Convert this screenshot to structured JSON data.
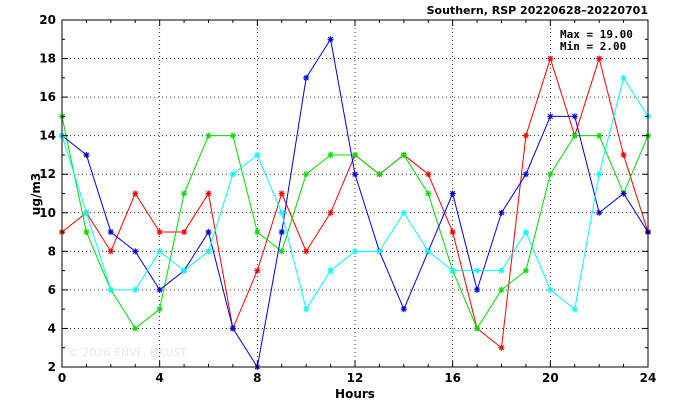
{
  "chart_data": {
    "type": "line",
    "title": "Southern, RSP 20220628–20220701",
    "xlabel": "Hours",
    "ylabel": "ug/m3",
    "xlim": [
      0,
      24
    ],
    "ylim": [
      2,
      20
    ],
    "xticks": [
      0,
      4,
      8,
      12,
      16,
      20,
      24
    ],
    "yticks": [
      2,
      4,
      6,
      8,
      10,
      12,
      14,
      16,
      18,
      20
    ],
    "grid": true,
    "stats": {
      "max": "Max = 19.00",
      "min": "Min =  2.00"
    },
    "watermark": "© 2026  ENVF, HKUST",
    "x": [
      0,
      1,
      2,
      3,
      4,
      5,
      6,
      7,
      8,
      9,
      10,
      11,
      12,
      13,
      14,
      15,
      16,
      17,
      18,
      19,
      20,
      21,
      22,
      23,
      24
    ],
    "series": [
      {
        "color": "#ff0000",
        "values": [
          9,
          10,
          8,
          11,
          9,
          9,
          11,
          4,
          7,
          11,
          8,
          10,
          13,
          12,
          13,
          12,
          9,
          4,
          3,
          14,
          18,
          14,
          18,
          13,
          9
        ]
      },
      {
        "color": "#00dd00",
        "values": [
          15,
          9,
          6,
          4,
          5,
          11,
          14,
          14,
          9,
          8,
          12,
          13,
          13,
          12,
          13,
          11,
          7,
          4,
          6,
          7,
          12,
          14,
          14,
          11,
          14
        ]
      },
      {
        "color": "#0000dd",
        "values": [
          14,
          13,
          9,
          8,
          6,
          7,
          9,
          4,
          2,
          9,
          17,
          19,
          12,
          8,
          5,
          8,
          11,
          6,
          10,
          12,
          15,
          15,
          10,
          11,
          9
        ]
      },
      {
        "color": "#00ffff",
        "values": [
          14,
          10,
          6,
          6,
          8,
          7,
          8,
          12,
          13,
          10,
          5,
          7,
          8,
          8,
          10,
          8,
          7,
          7,
          7,
          9,
          6,
          5,
          12,
          17,
          15
        ]
      }
    ]
  }
}
